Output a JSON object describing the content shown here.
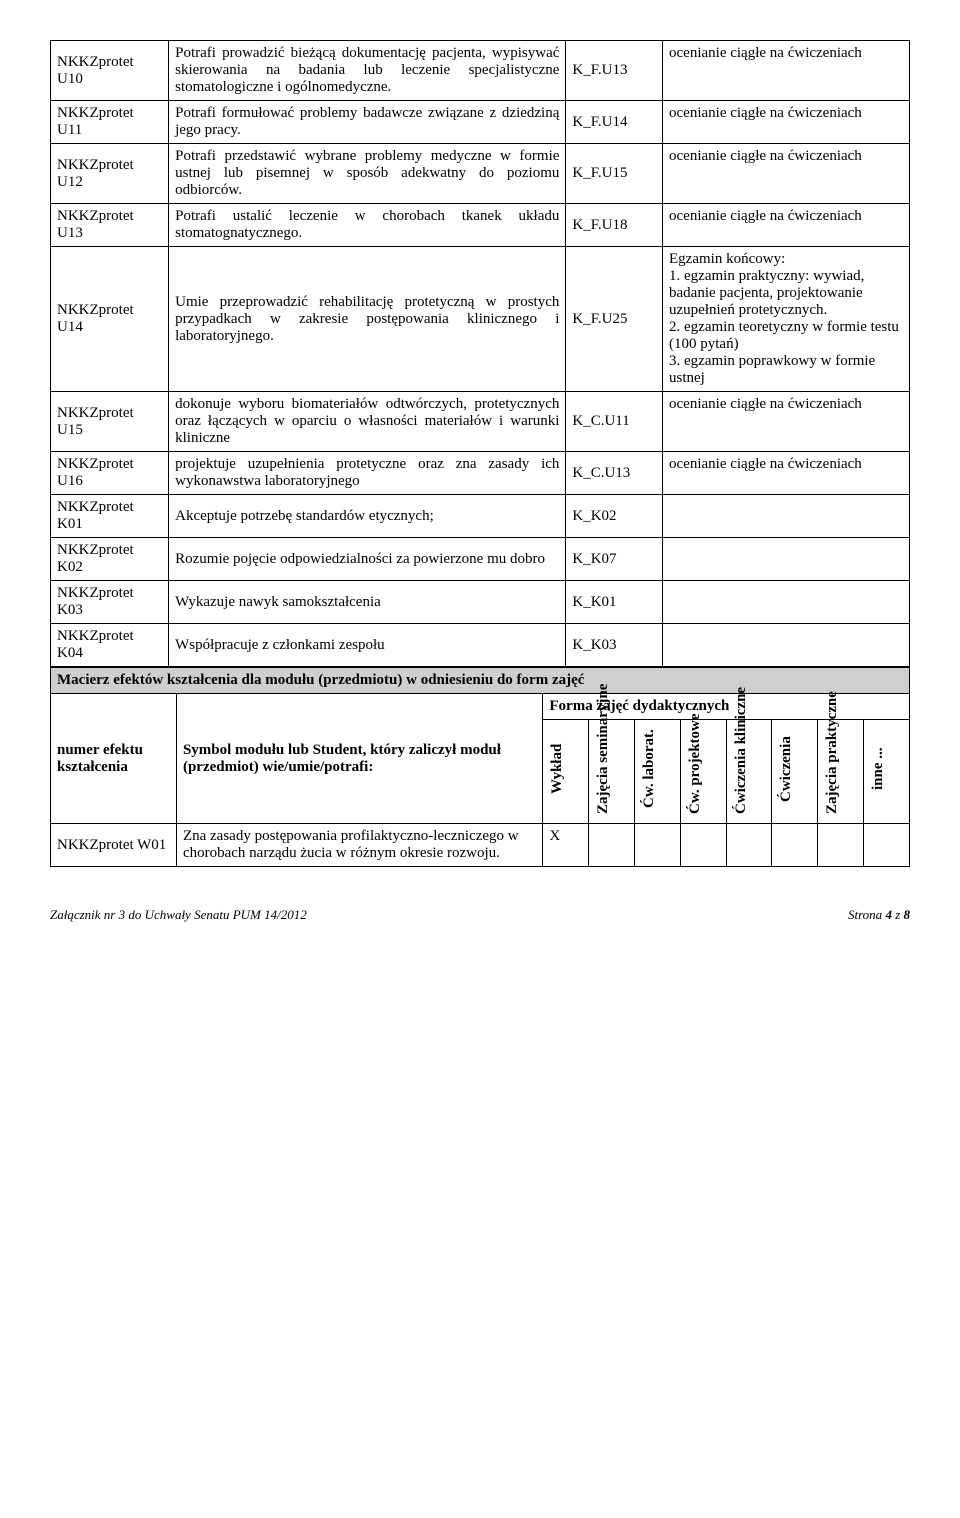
{
  "rows": [
    {
      "code": "NKKZprotet U10",
      "desc": "Potrafi prowadzić bieżącą dokumentację pacjenta, wypisywać skierowania na badania lub leczenie specjalistyczne stomatologiczne i ogólnomedyczne.",
      "ref": "K_F.U13",
      "ass": "ocenianie ciągłe na ćwiczeniach"
    },
    {
      "code": "NKKZprotet U11",
      "desc": "Potrafi formułować problemy badawcze związane z dziedziną jego pracy.",
      "ref": "K_F.U14",
      "ass": "ocenianie ciągłe na ćwiczeniach"
    },
    {
      "code": "NKKZprotet U12",
      "desc": "Potrafi przedstawić wybrane problemy medyczne w formie ustnej lub pisemnej w sposób adekwatny do poziomu odbiorców.",
      "ref": "K_F.U15",
      "ass": "ocenianie ciągłe na ćwiczeniach"
    },
    {
      "code": "NKKZprotet U13",
      "desc": "Potrafi ustalić leczenie w chorobach tkanek układu stomatognatycznego.",
      "ref": "K_F.U18",
      "ass": "ocenianie ciągłe na ćwiczeniach"
    },
    {
      "code": "NKKZprotet U14",
      "desc": "Umie przeprowadzić rehabilitację protetyczną w prostych przypadkach w zakresie postępowania klinicznego i laboratoryjnego.",
      "ref": "K_F.U25",
      "ass": "Egzamin końcowy:\n1. egzamin praktyczny: wywiad, badanie pacjenta, projektowanie uzupełnień protetycznych.\n2. egzamin teoretyczny w formie testu (100 pytań)\n3. egzamin poprawkowy w formie ustnej"
    },
    {
      "code": "NKKZprotet U15",
      "desc": "dokonuje wyboru biomateriałów odtwórczych, protetycznych oraz łączących w oparciu o własności materiałów i warunki kliniczne",
      "ref": "K_C.U11",
      "ass": "ocenianie ciągłe na ćwiczeniach"
    },
    {
      "code": "NKKZprotet U16",
      "desc": "projektuje uzupełnienia protetyczne oraz zna zasady ich wykonawstwa laboratoryjnego",
      "ref": "K_C.U13",
      "ass": "ocenianie ciągłe na ćwiczeniach"
    },
    {
      "code": "NKKZprotet K01",
      "desc": "Akceptuje potrzebę standardów etycznych;",
      "ref": "K_K02",
      "ass": ""
    },
    {
      "code": "NKKZprotet K02",
      "desc": "Rozumie pojęcie odpowiedzialności za powierzone mu dobro",
      "ref": "K_K07",
      "ass": ""
    },
    {
      "code": "NKKZprotet K03",
      "desc": "Wykazuje nawyk samokształcenia",
      "ref": "K_K01",
      "ass": ""
    },
    {
      "code": "NKKZprotet K04",
      "desc": "Współpracuje z członkami zespołu",
      "ref": "K_K03",
      "ass": ""
    }
  ],
  "matrix_title": "Macierz efektów kształcenia dla modułu (przedmiotu) w odniesieniu do form zajęć",
  "matrix_form_header": "Forma zajęć dydaktycznych",
  "matrix_col_labels": {
    "numer": "numer efektu kształcenia",
    "symbol": "Symbol modułu lub Student, który zaliczył moduł (przedmiot) wie/umie/potrafi:",
    "c1": "Wykład",
    "c2": "Zajęcia seminaryjne",
    "c3": "Ćw. laborat.",
    "c4": "Ćw. projektowe",
    "c5": "Ćwiczenia kliniczne",
    "c6": "Ćwiczenia",
    "c7": "Zajęcia praktyczne",
    "c8": "inne ..."
  },
  "matrix_row": {
    "code": "NKKZprotet W01",
    "desc": "Zna zasady postępowania profilaktyczno-leczniczego w chorobach narządu żucia w różnym okresie rozwoju.",
    "mark": "X"
  },
  "footer_left": "Załącznik nr 3 do Uchwały Senatu PUM 14/2012",
  "footer_right": "Strona 4 z 8"
}
